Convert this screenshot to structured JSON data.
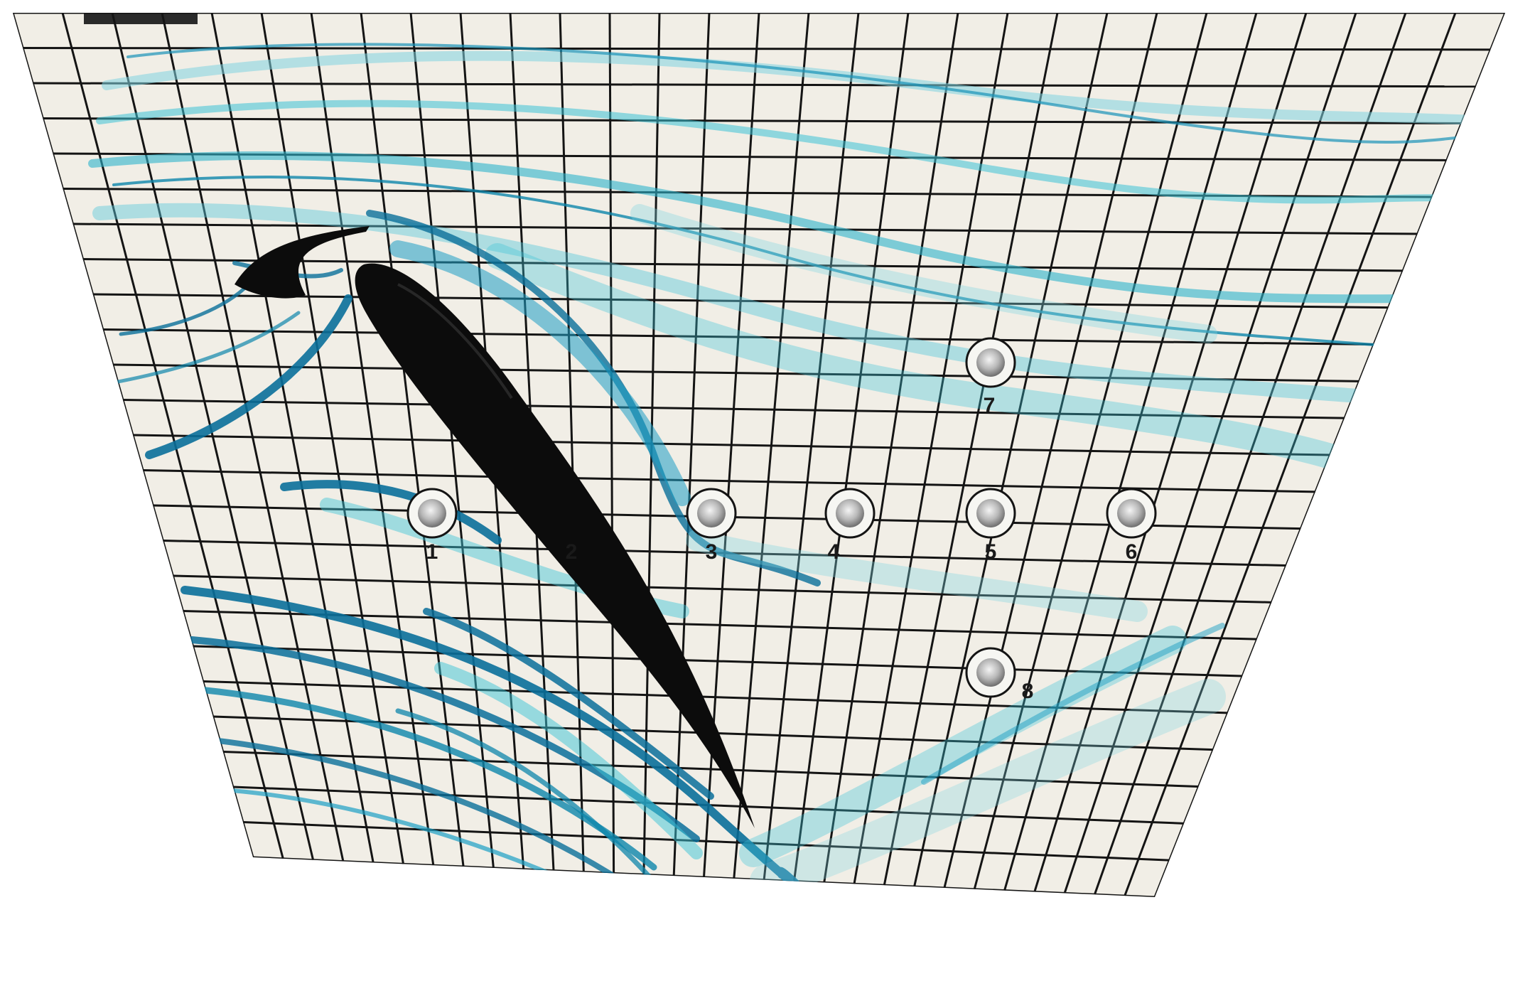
{
  "scene": {
    "subject": "flow-visualization-plate",
    "board_color": "#f1eee6",
    "grid_color": "#141414",
    "dye_dark": "#0a6f9a",
    "dye_light": "#3cc3d6",
    "airfoil_color": "#0c0c0c"
  },
  "pressure_taps": [
    {
      "id": "tap-1",
      "label": "1"
    },
    {
      "id": "tap-2",
      "label": "2"
    },
    {
      "id": "tap-3",
      "label": "3"
    },
    {
      "id": "tap-4",
      "label": "4"
    },
    {
      "id": "tap-5",
      "label": "5"
    },
    {
      "id": "tap-6",
      "label": "6"
    },
    {
      "id": "tap-7",
      "label": "7"
    },
    {
      "id": "tap-8",
      "label": "8"
    }
  ]
}
